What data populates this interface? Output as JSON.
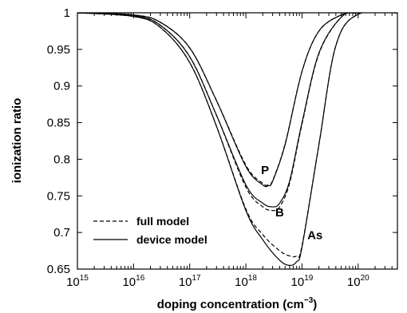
{
  "chart_data": {
    "type": "line",
    "xlabel": "doping concentration (cm",
    "xlabel_sup": "−3",
    "xlabel_close": ")",
    "ylabel": "ionization ratio",
    "x_scale": "log",
    "xlim": [
      1000000000000000.0,
      5e+20
    ],
    "ylim": [
      0.65,
      1.0
    ],
    "x_ticks": [
      {
        "value": 1000000000000000.0,
        "base": "10",
        "exp": "15"
      },
      {
        "value": 1e+16,
        "base": "10",
        "exp": "16"
      },
      {
        "value": 1e+17,
        "base": "10",
        "exp": "17"
      },
      {
        "value": 1e+18,
        "base": "10",
        "exp": "18"
      },
      {
        "value": 1e+19,
        "base": "10",
        "exp": "19"
      },
      {
        "value": 1e+20,
        "base": "10",
        "exp": "20"
      }
    ],
    "y_ticks": [
      {
        "value": 0.65,
        "label": "0.65"
      },
      {
        "value": 0.7,
        "label": "0.7"
      },
      {
        "value": 0.75,
        "label": "0.75"
      },
      {
        "value": 0.8,
        "label": "0.8"
      },
      {
        "value": 0.85,
        "label": "0.85"
      },
      {
        "value": 0.9,
        "label": "0.9"
      },
      {
        "value": 0.95,
        "label": "0.95"
      },
      {
        "value": 1.0,
        "label": "1"
      }
    ],
    "legend": {
      "placement": "bottom-left",
      "entries": [
        {
          "label": "full model",
          "style": "dashed"
        },
        {
          "label": "device model",
          "style": "solid"
        }
      ]
    },
    "curve_labels": [
      {
        "text": "P",
        "x": 2.2e+18,
        "y": 0.78
      },
      {
        "text": "B",
        "x": 4e+18,
        "y": 0.722
      },
      {
        "text": "As",
        "x": 1.7e+19,
        "y": 0.691
      }
    ],
    "series": [
      {
        "name": "P",
        "style": "solid",
        "x": [
          1000000000000000.0,
          1e+16,
          3e+16,
          1e+17,
          3e+17,
          1e+18,
          2e+18,
          2.5e+18,
          3e+18,
          5e+18,
          1e+19,
          2e+19,
          5e+19,
          1e+20,
          5e+20
        ],
        "y": [
          1.0,
          0.997,
          0.987,
          0.952,
          0.88,
          0.79,
          0.765,
          0.764,
          0.77,
          0.82,
          0.92,
          0.975,
          0.997,
          1.0,
          1.0
        ]
      },
      {
        "name": "P",
        "style": "dashed",
        "x": [
          1000000000000000.0,
          1e+16,
          3e+16,
          1e+17,
          3e+17,
          1e+18,
          2e+18,
          2.5e+18,
          3e+18,
          5e+18,
          1e+19,
          2e+19,
          5e+19,
          1e+20,
          5e+20
        ],
        "y": [
          1.0,
          0.997,
          0.987,
          0.952,
          0.88,
          0.792,
          0.767,
          0.765,
          0.771,
          0.821,
          0.92,
          0.975,
          0.997,
          1.0,
          1.0
        ]
      },
      {
        "name": "B",
        "style": "solid",
        "x": [
          1000000000000000.0,
          1e+16,
          3e+16,
          1e+17,
          3e+17,
          1e+18,
          2e+18,
          3e+18,
          4e+18,
          6e+18,
          1e+19,
          2e+19,
          5e+19,
          1e+20,
          5e+20
        ],
        "y": [
          1.0,
          0.996,
          0.983,
          0.94,
          0.86,
          0.765,
          0.74,
          0.735,
          0.74,
          0.77,
          0.85,
          0.945,
          0.994,
          1.0,
          1.0
        ]
      },
      {
        "name": "B",
        "style": "dashed",
        "x": [
          1000000000000000.0,
          1e+16,
          3e+16,
          1e+17,
          3e+17,
          1e+18,
          2e+18,
          3e+18,
          4e+18,
          6e+18,
          1e+19,
          2e+19,
          5e+19,
          1e+20,
          5e+20
        ],
        "y": [
          1.0,
          0.996,
          0.983,
          0.94,
          0.86,
          0.762,
          0.735,
          0.73,
          0.735,
          0.767,
          0.848,
          0.944,
          0.994,
          1.0,
          1.0
        ]
      },
      {
        "name": "As",
        "style": "solid",
        "x": [
          1000000000000000.0,
          1e+16,
          3e+16,
          1e+17,
          3e+17,
          1e+18,
          2e+18,
          4e+18,
          6e+18,
          8e+18,
          1e+19,
          2e+19,
          4e+19,
          1e+20,
          5e+20
        ],
        "y": [
          1.0,
          0.995,
          0.98,
          0.932,
          0.845,
          0.73,
          0.69,
          0.662,
          0.655,
          0.66,
          0.68,
          0.82,
          0.955,
          0.998,
          1.0
        ]
      },
      {
        "name": "As",
        "style": "dashed",
        "x": [
          1000000000000000.0,
          1e+16,
          3e+16,
          1e+17,
          3e+17,
          1e+18,
          2e+18,
          4e+18,
          6e+18,
          8e+18,
          1e+19,
          2e+19,
          4e+19,
          1e+20,
          5e+20
        ],
        "y": [
          1.0,
          0.995,
          0.98,
          0.932,
          0.845,
          0.732,
          0.697,
          0.675,
          0.668,
          0.668,
          0.682,
          0.82,
          0.955,
          0.998,
          1.0
        ]
      }
    ]
  }
}
